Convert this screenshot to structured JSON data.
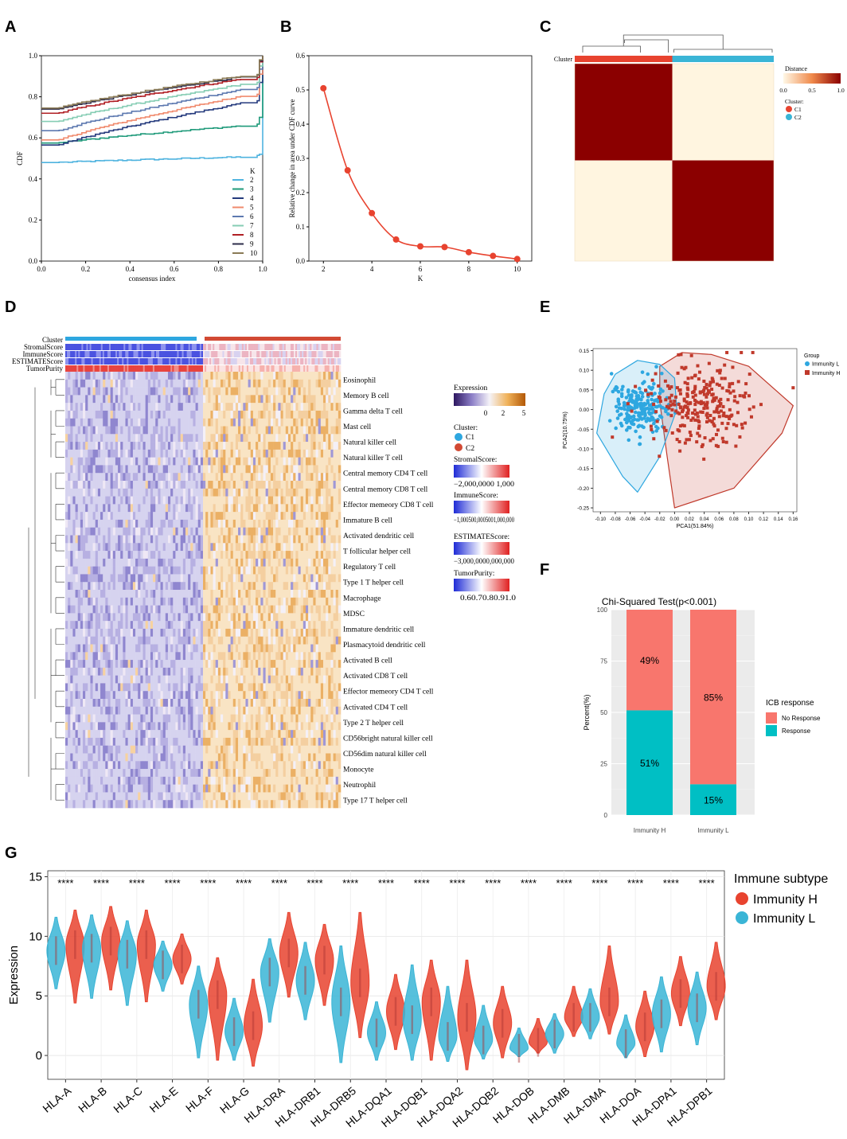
{
  "panel_letters": [
    "A",
    "B",
    "C",
    "D",
    "E",
    "F",
    "G"
  ],
  "colors": {
    "c1": "#2ea7e0",
    "c2": "#d24a34",
    "red": "#e8432f",
    "teal": "#3ab5d6",
    "noresp": "#f8766d",
    "resp": "#00bfc4",
    "dark_red": "#8b0000",
    "cream": "#fff5e0"
  },
  "chart_data": [
    {
      "id": "A",
      "type": "line",
      "xlabel": "consensus index",
      "ylabel": "CDF",
      "xlim": [
        0,
        1
      ],
      "ylim": [
        0,
        1
      ],
      "xticks": [
        "0.0",
        "0.2",
        "0.4",
        "0.6",
        "0.8",
        "1.0"
      ],
      "yticks": [
        "0.0",
        "0.2",
        "0.4",
        "0.6",
        "0.8",
        "1.0"
      ],
      "legend_title": "K",
      "legend_position": "bottom-right",
      "series": [
        {
          "name": "2",
          "color": "#4fb3df",
          "start": 0.48,
          "end": 0.52
        },
        {
          "name": "3",
          "color": "#1f9a7a",
          "start": 0.575,
          "end": 0.7
        },
        {
          "name": "4",
          "color": "#253a7d",
          "start": 0.565,
          "end": 0.87
        },
        {
          "name": "5",
          "color": "#f08a6d",
          "start": 0.59,
          "end": 0.91
        },
        {
          "name": "6",
          "color": "#5d79b0",
          "start": 0.635,
          "end": 0.935
        },
        {
          "name": "7",
          "color": "#86cdb4",
          "start": 0.68,
          "end": 0.95
        },
        {
          "name": "8",
          "color": "#b01f24",
          "start": 0.72,
          "end": 0.97
        },
        {
          "name": "9",
          "color": "#2c2c4a",
          "start": 0.74,
          "end": 0.975
        },
        {
          "name": "10",
          "color": "#8a7a55",
          "start": 0.745,
          "end": 0.98
        }
      ]
    },
    {
      "id": "B",
      "type": "line",
      "xlabel": "K",
      "ylabel": "Relative change in area under CDF curve",
      "x": [
        2,
        3,
        4,
        5,
        6,
        7,
        8,
        9,
        10
      ],
      "y": [
        0.505,
        0.265,
        0.14,
        0.063,
        0.043,
        0.041,
        0.026,
        0.015,
        0.006
      ],
      "xlim": [
        1.4,
        10.6
      ],
      "ylim": [
        0,
        0.6
      ],
      "xticks": [
        "2",
        "4",
        "6",
        "8",
        "10"
      ],
      "yticks": [
        "0.0",
        "0.1",
        "0.2",
        "0.3",
        "0.4",
        "0.5",
        "0.6"
      ],
      "color": "#e8432f"
    },
    {
      "id": "C",
      "type": "heatmap",
      "top_label": "Cluster",
      "legend_title": "Distance",
      "legend_ticks": [
        "0.0",
        "0.5",
        "1.0"
      ],
      "cluster_legend_title": "Cluster:",
      "clusters": [
        {
          "name": "C1",
          "color": "#e8432f"
        },
        {
          "name": "C2",
          "color": "#3ab5d6"
        }
      ],
      "split_fraction": 0.49
    },
    {
      "id": "D",
      "type": "heatmap",
      "annotation_rows": [
        "Cluster",
        "StromalScore",
        "ImmuneScore",
        "ESTIMATEScore",
        "TumorPurity"
      ],
      "rows": [
        "Eosinophil",
        "Memory B cell",
        "Gamma delta T cell",
        "Mast cell",
        "Natural killer cell",
        "Natural killer T cell",
        "Central memory CD4 T cell",
        "Central memory CD8 T cell",
        "Effector memeory CD8 T cell",
        "Immature B cell",
        "Activated dendritic cell",
        "T follicular helper cell",
        "Regulatory T cell",
        "Type 1 T helper cell",
        "Macrophage",
        "MDSC",
        "Immature dendritic cell",
        "Plasmacytoid dendritic cell",
        "Activated B cell",
        "Activated CD8 T cell",
        "Effector memeory CD4 T cell",
        "Activated CD4 T cell",
        "Type 2 T helper cell",
        "CD56bright natural killer cell",
        "CD56dim natural killer cell",
        "Monocyte",
        "Neutrophil",
        "Type 17 T helper cell"
      ],
      "legends": {
        "expression_title": "Expression",
        "expression_ticks": [
          "0",
          "2",
          "5"
        ],
        "cluster_title": "Cluster:",
        "clusters": [
          "C1",
          "C2"
        ],
        "stromal_title": "StromalScore:",
        "stromal_ticks": "−2,000,0000 1,000",
        "immune_title": "ImmuneScore:",
        "immune_ticks": "−1,000500,0005001,000,000",
        "estimate_title": "ESTIMATEScore:",
        "estimate_ticks": "−3,000,0000,000,000",
        "purity_title": "TumorPurity:",
        "purity_ticks": "0.60.70.80.91.0"
      }
    },
    {
      "id": "E",
      "type": "scatter",
      "xlabel": "PCA1(51.84%)",
      "ylabel": "PCA2(10.75%)",
      "xlim": [
        -0.11,
        0.165
      ],
      "ylim": [
        -0.26,
        0.155
      ],
      "xticks": [
        "-0.10",
        "-0.08",
        "-0.06",
        "-0.04",
        "-0.02",
        "0.00",
        "0.02",
        "0.04",
        "0.06",
        "0.08",
        "0.10",
        "0.12",
        "0.14",
        "0.16"
      ],
      "yticks": [
        "0.15",
        "0.10",
        "0.05",
        "0.00",
        "-0.05",
        "-0.10",
        "-0.15",
        "-0.20",
        "-0.25"
      ],
      "legend_title": "Group",
      "series": [
        {
          "name": "Immunity L",
          "color": "#2ea7e0",
          "marker": "circle",
          "center": [
            -0.045,
            0.005
          ],
          "spread": [
            0.02,
            0.035
          ],
          "n": 210
        },
        {
          "name": "Immunity H",
          "color": "#c0392b",
          "marker": "square",
          "center": [
            0.035,
            0.015
          ],
          "spread": [
            0.035,
            0.05
          ],
          "n": 260
        }
      ]
    },
    {
      "id": "F",
      "type": "bar",
      "title": "Chi-Squared Test(p<0.001)",
      "xlabel": "",
      "ylabel": "Percent(%)",
      "categories": [
        "Immunity H",
        "Immunity L"
      ],
      "ylim": [
        0,
        100
      ],
      "yticks": [
        "0",
        "25",
        "50",
        "75",
        "100"
      ],
      "legend_title": "ICB response",
      "series": [
        {
          "name": "No Response",
          "color": "#f8766d",
          "values": [
            49,
            85
          ],
          "labels": [
            "49%",
            "85%"
          ]
        },
        {
          "name": "Response",
          "color": "#00bfc4",
          "values": [
            51,
            15
          ],
          "labels": [
            "51%",
            "15%"
          ]
        }
      ]
    },
    {
      "id": "G",
      "type": "violin",
      "ylabel": "Expression",
      "ylim": [
        -2,
        15.5
      ],
      "yticks": [
        "0",
        "5",
        "10",
        "15"
      ],
      "legend_title": "Immune subtype",
      "legend": [
        {
          "name": "Immunity H",
          "color": "#e8432f"
        },
        {
          "name": "Immunity L",
          "color": "#3ab5d6"
        }
      ],
      "significance": "****",
      "categories": [
        "HLA-A",
        "HLA-B",
        "HLA-C",
        "HLA-E",
        "HLA-F",
        "HLA-G",
        "HLA-DRA",
        "HLA-DRB1",
        "HLA-DRB5",
        "HLA-DQA1",
        "HLA-DQB1",
        "HLA-DQA2",
        "HLA-DQB2",
        "HLA-DOB",
        "HLA-DMB",
        "HLA-DMA",
        "HLA-DOA",
        "HLA-DPA1",
        "HLA-DPB1"
      ],
      "immunity_L": [
        {
          "median": 8.8,
          "min": 5.6,
          "max": 11.6
        },
        {
          "median": 9.0,
          "min": 4.8,
          "max": 11.8
        },
        {
          "median": 8.5,
          "min": 4.2,
          "max": 11.3
        },
        {
          "median": 7.6,
          "min": 5.4,
          "max": 9.6
        },
        {
          "median": 4.3,
          "min": -0.2,
          "max": 7.5
        },
        {
          "median": 2.0,
          "min": -0.4,
          "max": 4.8
        },
        {
          "median": 7.0,
          "min": 2.8,
          "max": 9.8
        },
        {
          "median": 6.3,
          "min": 3.0,
          "max": 9.5
        },
        {
          "median": 4.5,
          "min": -0.6,
          "max": 9.2
        },
        {
          "median": 1.9,
          "min": -0.4,
          "max": 4.5
        },
        {
          "median": 3.0,
          "min": -0.4,
          "max": 7.6
        },
        {
          "median": 1.6,
          "min": -0.5,
          "max": 5.8
        },
        {
          "median": 1.3,
          "min": -0.3,
          "max": 4.2
        },
        {
          "median": 0.6,
          "min": -0.1,
          "max": 2.3
        },
        {
          "median": 1.8,
          "min": 0.2,
          "max": 3.5
        },
        {
          "median": 3.2,
          "min": 1.4,
          "max": 5.6
        },
        {
          "median": 1.0,
          "min": -0.2,
          "max": 3.4
        },
        {
          "median": 3.5,
          "min": 0.3,
          "max": 6.6
        },
        {
          "median": 4.0,
          "min": 0.9,
          "max": 7.0
        }
      ],
      "immunity_H": [
        {
          "median": 9.3,
          "min": 4.4,
          "max": 12.2
        },
        {
          "median": 9.6,
          "min": 5.5,
          "max": 12.5
        },
        {
          "median": 9.3,
          "min": 4.5,
          "max": 12.2
        },
        {
          "median": 8.1,
          "min": 6.0,
          "max": 10.2
        },
        {
          "median": 5.1,
          "min": -0.4,
          "max": 8.2
        },
        {
          "median": 2.5,
          "min": -0.9,
          "max": 6.4
        },
        {
          "median": 8.6,
          "min": 4.9,
          "max": 12.0
        },
        {
          "median": 8.0,
          "min": 4.2,
          "max": 11.0
        },
        {
          "median": 6.1,
          "min": 1.5,
          "max": 12.0
        },
        {
          "median": 3.7,
          "min": 0.5,
          "max": 6.8
        },
        {
          "median": 4.5,
          "min": -0.4,
          "max": 8.0
        },
        {
          "median": 3.2,
          "min": -1.2,
          "max": 8.0
        },
        {
          "median": 2.7,
          "min": -0.2,
          "max": 5.8
        },
        {
          "median": 1.1,
          "min": 0.2,
          "max": 3.1
        },
        {
          "median": 3.2,
          "min": 1.6,
          "max": 5.8
        },
        {
          "median": 4.5,
          "min": 1.8,
          "max": 9.2
        },
        {
          "median": 2.4,
          "min": -0.1,
          "max": 5.4
        },
        {
          "median": 5.2,
          "min": 2.5,
          "max": 8.3
        },
        {
          "median": 5.8,
          "min": 3.0,
          "max": 9.5
        }
      ]
    }
  ]
}
